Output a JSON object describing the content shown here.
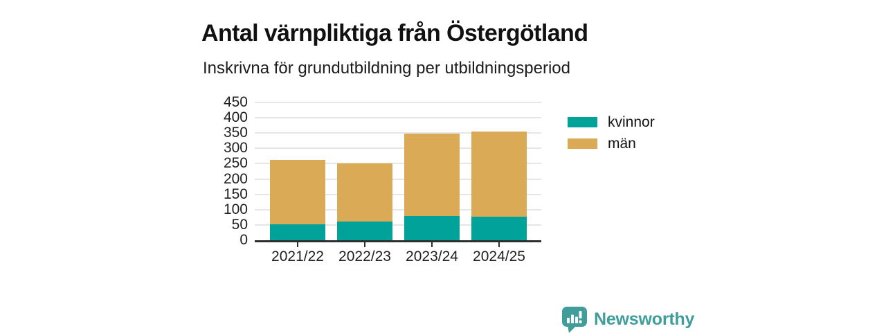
{
  "chart_data": {
    "type": "bar",
    "stacked": true,
    "title": "Antal värnpliktiga från Östergötland",
    "subtitle": "Inskrivna för grundutbildning per utbildningsperiod",
    "categories": [
      "2021/22",
      "2022/23",
      "2023/24",
      "2024/25"
    ],
    "series": [
      {
        "name": "kvinnor",
        "color": "#00a29a",
        "values": [
          53,
          62,
          80,
          77
        ]
      },
      {
        "name": "män",
        "color": "#dbaa57",
        "values": [
          209,
          189,
          268,
          278
        ]
      }
    ],
    "stacked_totals": [
      262,
      251,
      348,
      355
    ],
    "xlabel": "",
    "ylabel": "",
    "ylim": [
      0,
      450
    ],
    "yticks": [
      0,
      50,
      100,
      150,
      200,
      250,
      300,
      350,
      400,
      450
    ],
    "grid": "horizontal",
    "legend_position": "right-top"
  },
  "style": {
    "grid_color": "#e6e6e6",
    "axis_color": "#2e2e2e",
    "text_color": "#1f1f1f",
    "background": "#ffffff"
  },
  "branding": {
    "logo_text": "Newsworthy",
    "logo_color": "#3f9e99",
    "logo_icon": "bar-chart-speech-bubble"
  }
}
